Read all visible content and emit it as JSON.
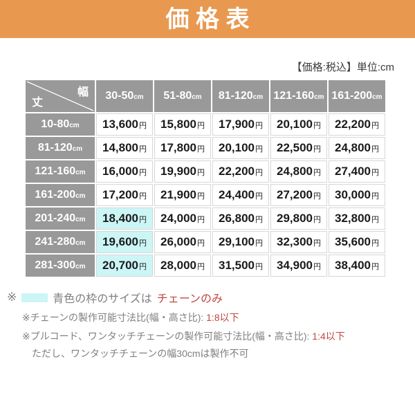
{
  "banner": {
    "title": "価 格 表"
  },
  "meta_note": "【価格:税込】単位:cm",
  "table": {
    "corner": {
      "top_right_label": "幅",
      "bottom_left_label": "丈"
    },
    "unit_width": "cm",
    "price_unit": "円",
    "col_headers": [
      "30-50",
      "51-80",
      "81-120",
      "121-160",
      "161-200"
    ],
    "row_headers": [
      "10-80",
      "81-120",
      "121-160",
      "161-200",
      "201-240",
      "241-280",
      "281-300"
    ],
    "prices": [
      [
        "13,600",
        "15,800",
        "17,900",
        "20,100",
        "22,200"
      ],
      [
        "14,800",
        "17,800",
        "20,100",
        "22,500",
        "24,800"
      ],
      [
        "16,000",
        "19,900",
        "22,200",
        "24,800",
        "27,400"
      ],
      [
        "17,200",
        "21,900",
        "24,400",
        "27,200",
        "30,000"
      ],
      [
        "18,400",
        "24,000",
        "26,800",
        "29,800",
        "32,800"
      ],
      [
        "19,600",
        "26,000",
        "29,100",
        "32,300",
        "35,600"
      ],
      [
        "20,700",
        "28,000",
        "31,500",
        "34,900",
        "38,400"
      ]
    ],
    "highlighted_cells": [
      [
        4,
        0
      ],
      [
        5,
        0
      ],
      [
        6,
        0
      ]
    ]
  },
  "legend": {
    "marker": "※",
    "line1_text": "青色の枠のサイズはチェーンのみ",
    "line1_gray": "青色の枠のサイズは",
    "line1_red": "チェーンのみ",
    "line2_gray": "※チェーンの製作可能寸法比(幅・高さ比): ",
    "line2_red": "1:8以下",
    "line3_gray": "※プルコード、ワンタッチチェーンの製作可能寸法比(幅・高さ比): ",
    "line3_red": "1:4以下",
    "line4_gray": "ただし、ワンタッチチェーンの幅30cmは製作不可"
  },
  "colors": {
    "banner_bg": "#e8994f",
    "header_cell_bg": "#999999",
    "highlight_bg": "#ccf5f6",
    "accent_red": "#c24740",
    "note_gray": "#7f7f7f"
  }
}
